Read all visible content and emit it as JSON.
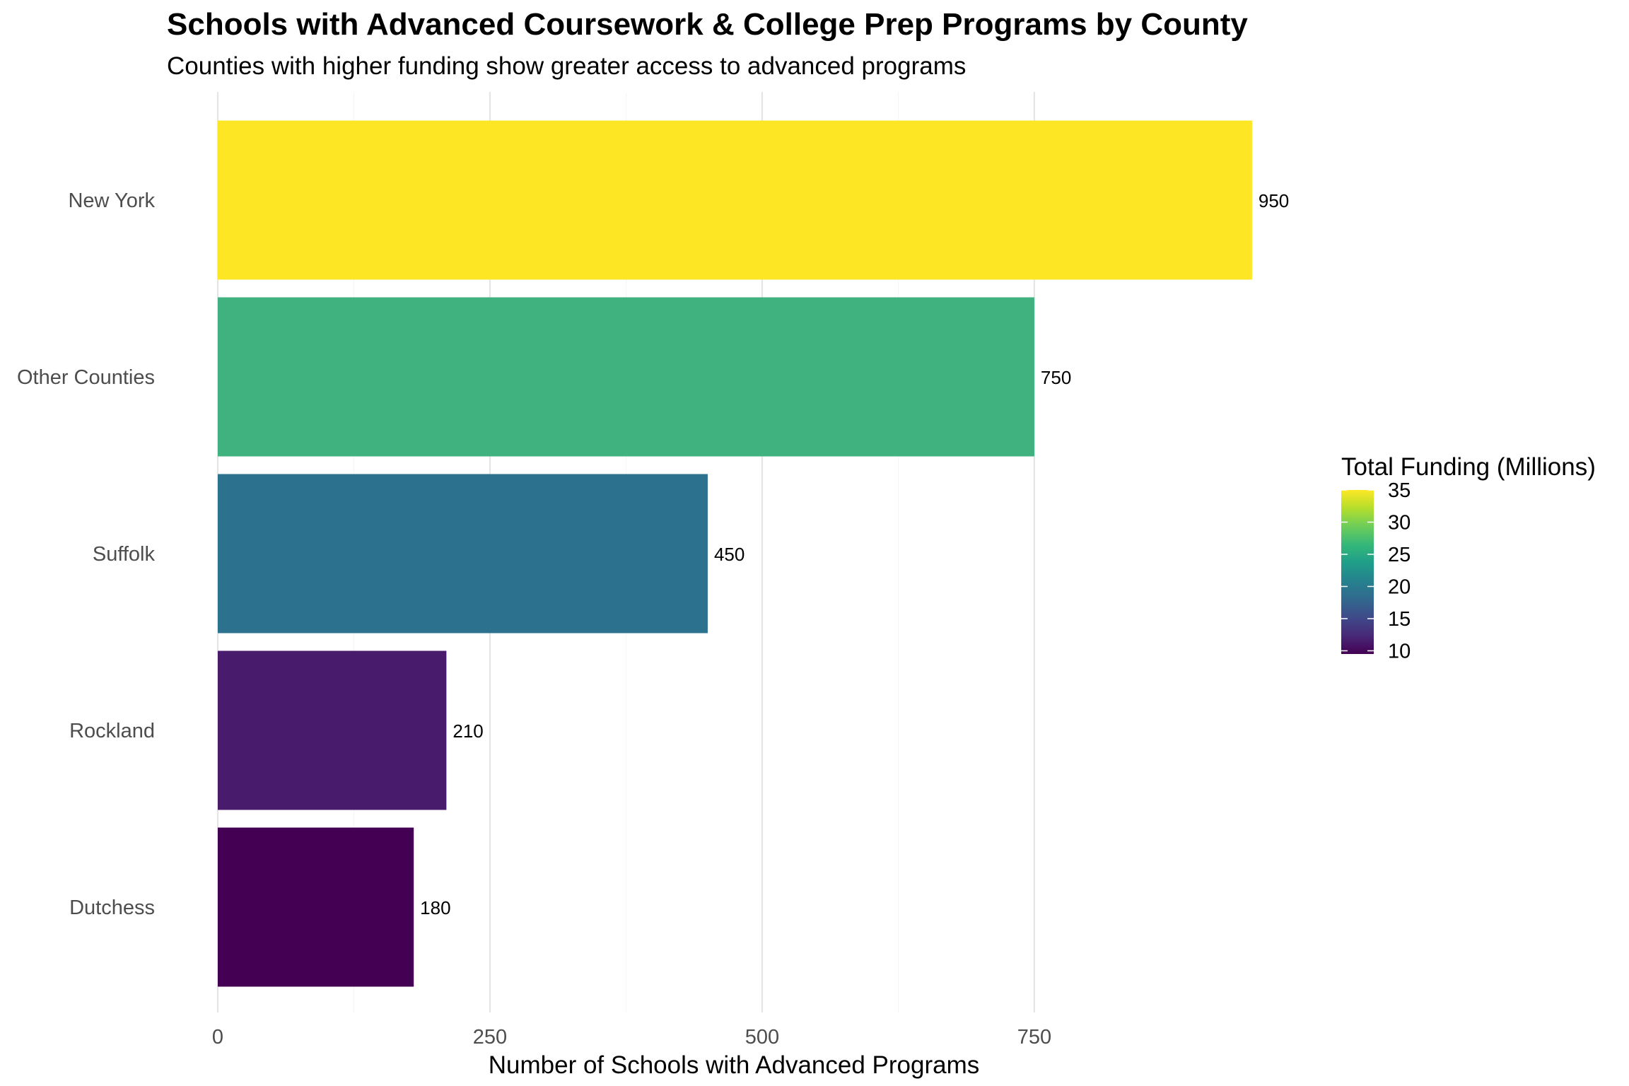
{
  "title": "Schools with Advanced Coursework & College Prep Programs by County",
  "subtitle": "Counties with higher funding show greater access to advanced programs",
  "chart_data": {
    "type": "bar",
    "orientation": "horizontal",
    "title": "Schools with Advanced Coursework & College Prep Programs by County",
    "subtitle": "Counties with higher funding show greater access to advanced programs",
    "xlabel": "Number of Schools with Advanced Programs",
    "ylabel": "",
    "xlim": [
      0,
      950
    ],
    "x_ticks": [
      0,
      250,
      500,
      750
    ],
    "grid": "vertical major gridlines",
    "categories": [
      "New York",
      "Other Counties",
      "Suffolk",
      "Rockland",
      "Dutchess"
    ],
    "values": [
      950,
      750,
      450,
      210,
      180
    ],
    "value_labels": [
      "950",
      "750",
      "450",
      "210",
      "180"
    ],
    "fill_values": [
      35,
      24,
      18,
      12,
      9.5
    ],
    "bar_colors": [
      "#FDE725",
      "#3FB27F",
      "#2C728E",
      "#481B6D",
      "#440154"
    ],
    "legend": {
      "title": "Total Funding (Millions)",
      "placement": "right",
      "type": "colorbar",
      "range": [
        9.5,
        35
      ],
      "ticks": [
        10,
        15,
        20,
        25,
        30,
        35
      ],
      "colors": [
        "#440154",
        "#482878",
        "#3E4A89",
        "#31688E",
        "#26828E",
        "#1F9E89",
        "#35B779",
        "#6DCD59",
        "#B4DE2C",
        "#FDE725"
      ]
    }
  }
}
